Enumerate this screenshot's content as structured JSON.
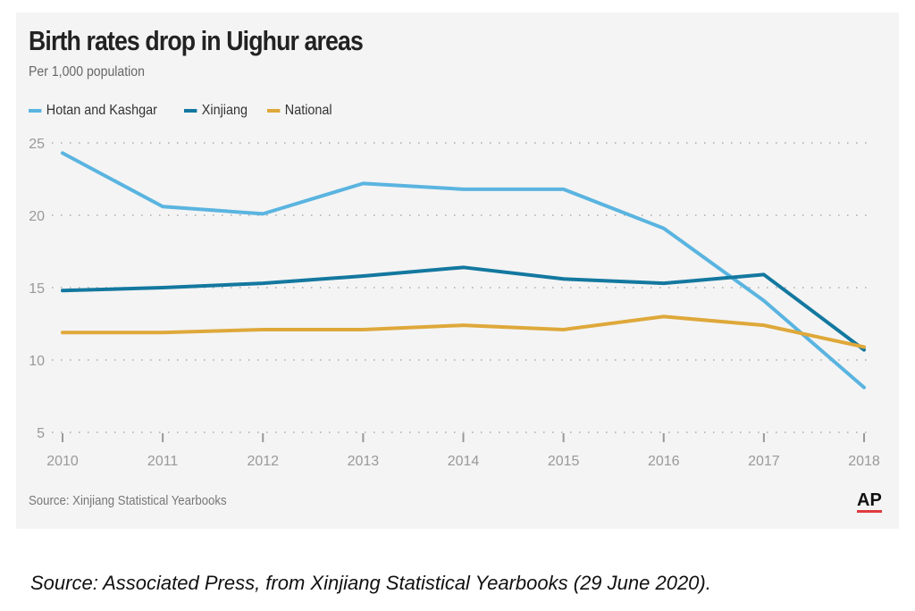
{
  "chart_data": {
    "type": "line",
    "title": "Birth rates drop in Uighur areas",
    "subtitle": "Per 1,000 population",
    "xlabel": "",
    "ylabel": "Per 1,000 population",
    "x": [
      "2010",
      "2011",
      "2012",
      "2013",
      "2014",
      "2015",
      "2016",
      "2017",
      "2018"
    ],
    "ylim": [
      5,
      25
    ],
    "yticks": [
      "25",
      "20",
      "15",
      "10",
      "5"
    ],
    "grid": true,
    "legend_position": "top-left",
    "series": [
      {
        "name": "Hotan and Kashgar",
        "color": "#5ab4e0",
        "values": [
          24.3,
          20.6,
          20.1,
          22.2,
          21.8,
          21.8,
          19.1,
          14.1,
          8.1
        ]
      },
      {
        "name": "Xinjiang",
        "color": "#13789f",
        "values": [
          14.8,
          15.0,
          15.3,
          15.8,
          16.4,
          15.6,
          15.3,
          15.9,
          10.7
        ]
      },
      {
        "name": "National",
        "color": "#dea83a",
        "values": [
          11.9,
          11.9,
          12.1,
          12.1,
          12.4,
          12.1,
          13.0,
          12.4,
          10.9
        ]
      }
    ],
    "source": "Source: Xinjiang Statistical Yearbooks"
  },
  "logo": "AP",
  "caption": "Source: Associated Press, from Xinjiang Statistical Yearbooks (29 June 2020)."
}
